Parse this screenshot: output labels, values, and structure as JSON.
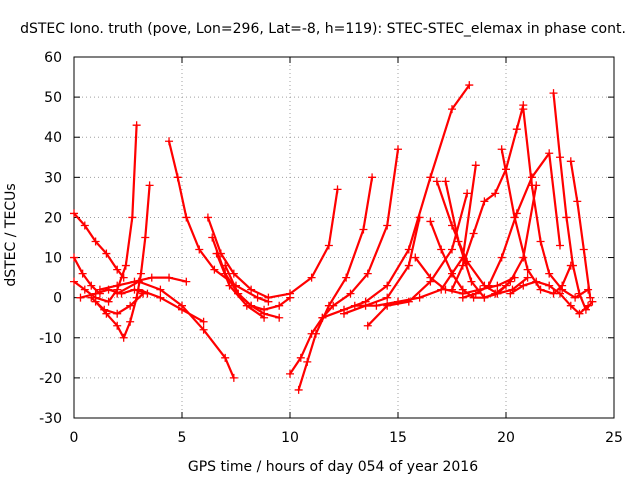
{
  "chart_data": {
    "type": "scatter",
    "title": "dSTEC Iono. truth (pove, Lon=296, Lat=-8, h=119): STEC-STEC_elemax in phase cont.",
    "xlabel": "GPS time / hours of day 054 of year 2016",
    "ylabel": "dSTEC  / TECUs",
    "xlim": [
      0,
      25
    ],
    "ylim": [
      -30,
      60
    ],
    "xticks": [
      0,
      5,
      10,
      15,
      20,
      25
    ],
    "yticks": [
      -30,
      -20,
      -10,
      0,
      10,
      20,
      30,
      40,
      50,
      60
    ],
    "grid": true,
    "legend": "none",
    "marker": "plus",
    "color": "#ff0000",
    "series": [
      {
        "x": [
          0.0,
          0.5,
          1.0,
          1.5,
          2.0,
          2.3
        ],
        "y": [
          21,
          18,
          14,
          11,
          7,
          5
        ]
      },
      {
        "x": [
          0.0,
          0.4,
          0.8,
          1.2
        ],
        "y": [
          10,
          6,
          3,
          1
        ]
      },
      {
        "x": [
          0.0,
          0.5,
          1.0,
          1.6,
          2.0,
          2.4,
          2.7,
          2.9
        ],
        "y": [
          4,
          2,
          0,
          -1,
          2,
          8,
          20,
          43
        ]
      },
      {
        "x": [
          1.0,
          1.5,
          2.0,
          2.3,
          2.6,
          2.9,
          3.1,
          3.3,
          3.5
        ],
        "y": [
          -1,
          -4,
          -7,
          -10,
          -6,
          0,
          6,
          15,
          28
        ]
      },
      {
        "x": [
          0.3,
          1.0,
          1.6,
          2.2,
          2.8,
          3.4
        ],
        "y": [
          0,
          1,
          2,
          1,
          2,
          1
        ]
      },
      {
        "x": [
          0.8,
          1.4,
          2.0,
          2.6,
          3.2
        ],
        "y": [
          0,
          -3,
          -4,
          -2,
          1
        ]
      },
      {
        "x": [
          1.2,
          2.0,
          2.8,
          3.6,
          4.4,
          5.2
        ],
        "y": [
          2,
          3,
          4,
          5,
          5,
          4
        ]
      },
      {
        "x": [
          2.0,
          3.0,
          4.0,
          5.0,
          6.0,
          7.0,
          7.4
        ],
        "y": [
          1,
          4,
          2,
          -2,
          -8,
          -15,
          -20
        ]
      },
      {
        "x": [
          3.0,
          4.0,
          5.0,
          6.0
        ],
        "y": [
          2,
          0,
          -3,
          -6
        ]
      },
      {
        "x": [
          4.4,
          4.8,
          5.2,
          5.8,
          6.5,
          7.5,
          8.5,
          9.0
        ],
        "y": [
          39,
          30,
          20,
          12,
          7,
          3,
          0,
          -1
        ]
      },
      {
        "x": [
          6.2,
          6.8,
          7.4,
          8.2,
          9.0,
          10.0,
          11.0,
          11.8,
          12.2
        ],
        "y": [
          20,
          11,
          6,
          2,
          0,
          1,
          5,
          13,
          27
        ]
      },
      {
        "x": [
          6.4,
          7.0,
          7.6,
          8.2,
          8.8,
          9.5
        ],
        "y": [
          15,
          6,
          1,
          -2,
          -4,
          -5
        ]
      },
      {
        "x": [
          6.6,
          7.2,
          8.0,
          8.8
        ],
        "y": [
          11,
          3,
          -2,
          -5
        ]
      },
      {
        "x": [
          7.0,
          7.6,
          8.2,
          8.8,
          9.5,
          10.0
        ],
        "y": [
          8,
          1,
          -2,
          -3,
          -2,
          0
        ]
      },
      {
        "x": [
          10.0,
          10.5,
          11.0,
          11.5,
          12.0,
          12.8,
          13.6,
          14.5,
          15.0
        ],
        "y": [
          -19,
          -15,
          -9,
          -5,
          -2,
          1,
          6,
          18,
          37
        ]
      },
      {
        "x": [
          10.4,
          10.8,
          11.2,
          11.8,
          12.6,
          13.4,
          13.8
        ],
        "y": [
          -23,
          -16,
          -9,
          -2,
          5,
          17,
          30
        ]
      },
      {
        "x": [
          11.5,
          12.5,
          13.5,
          14.5,
          15.5,
          16.5,
          17.5,
          18.3
        ],
        "y": [
          -5,
          -3,
          -1,
          3,
          12,
          30,
          47,
          53
        ]
      },
      {
        "x": [
          12.5,
          13.5,
          14.5,
          15.5,
          16.0
        ],
        "y": [
          -4,
          -2,
          0,
          8,
          20
        ]
      },
      {
        "x": [
          13.0,
          14.0,
          15.0,
          16.0,
          17.0,
          18.0,
          18.6
        ],
        "y": [
          -2,
          -2,
          -1,
          0,
          2,
          10,
          33
        ]
      },
      {
        "x": [
          13.6,
          14.5,
          15.5,
          16.5,
          17.5,
          18.2
        ],
        "y": [
          -7,
          -2,
          -1,
          4,
          12,
          26
        ]
      },
      {
        "x": [
          16.5,
          17.0,
          17.5,
          18.0,
          18.5,
          19.0,
          19.5,
          20.0
        ],
        "y": [
          19,
          12,
          6,
          2,
          0,
          0,
          1,
          3
        ]
      },
      {
        "x": [
          16.8,
          17.5,
          18.2,
          19.0,
          19.6,
          20.3,
          21.0
        ],
        "y": [
          29,
          18,
          9,
          3,
          1,
          2,
          5
        ]
      },
      {
        "x": [
          17.2,
          17.8,
          18.4,
          19.0,
          19.6,
          20.2,
          20.8,
          21.4
        ],
        "y": [
          29,
          14,
          4,
          0,
          1,
          4,
          10,
          28
        ]
      },
      {
        "x": [
          17.5,
          18.0,
          18.5,
          19.0,
          19.5,
          20.0,
          20.5,
          20.8
        ],
        "y": [
          2,
          8,
          16,
          24,
          26,
          32,
          42,
          48
        ]
      },
      {
        "x": [
          18.0,
          18.6,
          19.2,
          19.8,
          20.5,
          21.2,
          22.0,
          22.5
        ],
        "y": [
          0,
          1,
          3,
          10,
          21,
          30,
          36,
          13
        ]
      },
      {
        "x": [
          19.8,
          20.4,
          21.0,
          21.6,
          22.2,
          22.6,
          23.0
        ],
        "y": [
          37,
          20,
          7,
          2,
          1,
          3,
          8
        ]
      },
      {
        "x": [
          20.8,
          21.2,
          21.6,
          22.0,
          22.6,
          23.2,
          23.8
        ],
        "y": [
          47,
          28,
          14,
          6,
          2,
          0,
          2
        ]
      },
      {
        "x": [
          22.2,
          22.5,
          22.8,
          23.1,
          23.4,
          23.7,
          24.0
        ],
        "y": [
          51,
          35,
          20,
          8,
          1,
          -3,
          -1
        ]
      },
      {
        "x": [
          23.0,
          23.3,
          23.6,
          23.9
        ],
        "y": [
          34,
          24,
          12,
          0
        ]
      },
      {
        "x": [
          20.2,
          20.8,
          21.4,
          22.0,
          22.5,
          23.0,
          23.4,
          23.8
        ],
        "y": [
          1,
          3,
          4,
          3,
          1,
          -2,
          -4,
          -2
        ]
      },
      {
        "x": [
          15.8,
          16.5,
          17.2,
          18.0,
          18.8,
          19.6,
          20.4
        ],
        "y": [
          10,
          5,
          2,
          1,
          2,
          3,
          5
        ]
      }
    ]
  }
}
